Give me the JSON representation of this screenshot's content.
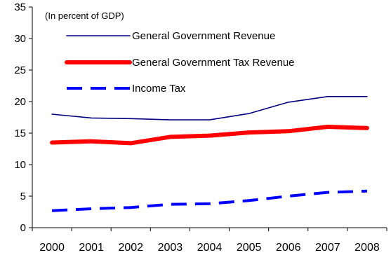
{
  "chart_data": {
    "type": "line",
    "note": "(In percent of GDP)",
    "categories": [
      "2000",
      "2001",
      "2002",
      "2003",
      "2004",
      "2005",
      "2006",
      "2007",
      "2008"
    ],
    "ylim": [
      0,
      35
    ],
    "yticks": [
      0,
      5,
      10,
      15,
      20,
      25,
      30,
      35
    ],
    "grid": false,
    "legend_position": "top-left",
    "series": [
      {
        "name": "General Government Revenue",
        "values": [
          18.0,
          17.4,
          17.3,
          17.1,
          17.1,
          18.1,
          19.9,
          20.8,
          20.8
        ],
        "color": "#000080",
        "style": "solid-thin"
      },
      {
        "name": "General Government Tax Revenue",
        "values": [
          13.5,
          13.7,
          13.4,
          14.4,
          14.6,
          15.1,
          15.3,
          16.0,
          15.8
        ],
        "color": "#ff0000",
        "style": "solid-thick"
      },
      {
        "name": "Income Tax",
        "values": [
          2.7,
          3.0,
          3.2,
          3.7,
          3.8,
          4.3,
          5.0,
          5.6,
          5.8
        ],
        "color": "#0000ff",
        "style": "dashed"
      }
    ]
  }
}
